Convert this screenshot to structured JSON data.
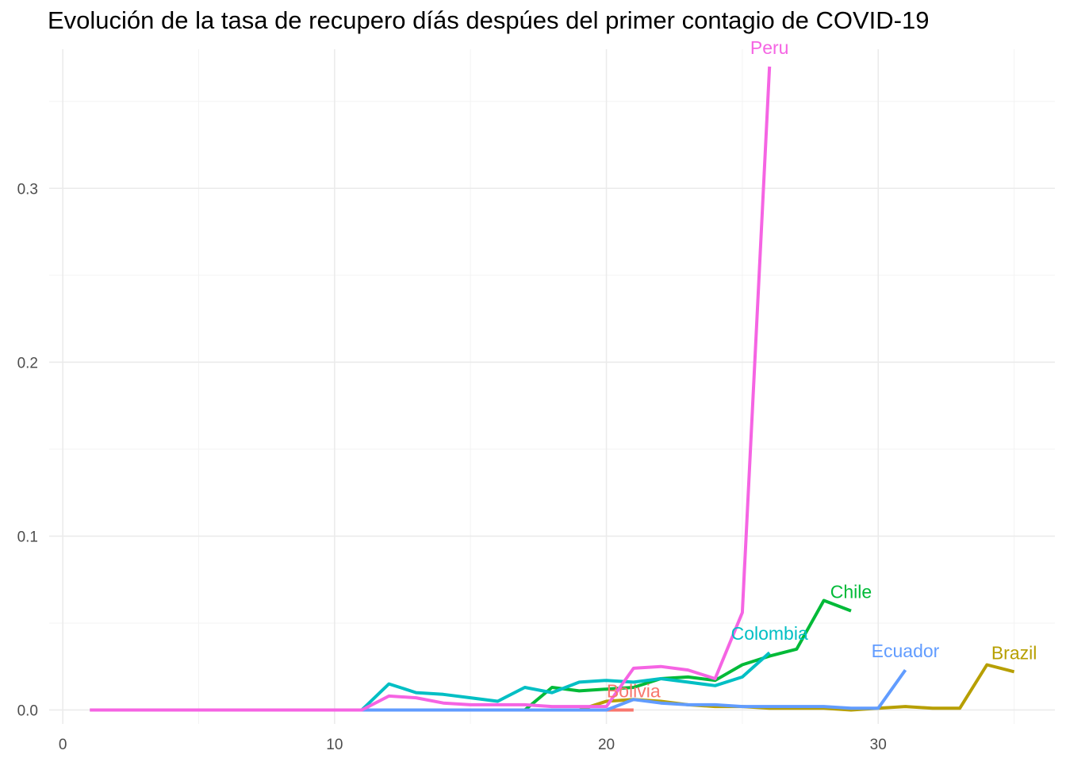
{
  "chart_data": {
    "type": "line",
    "title": "Evolución de la tasa de recupero díás despúes del primer contagio de COVID-19",
    "xlabel": "",
    "ylabel": "",
    "xlim": [
      -0.5,
      36.5
    ],
    "ylim": [
      -0.008,
      0.38
    ],
    "x_ticks": [
      0,
      10,
      20,
      30
    ],
    "y_ticks": [
      0.0,
      0.1,
      0.2,
      0.3
    ],
    "y_tick_labels": [
      "0.0",
      "0.1",
      "0.2",
      "0.3"
    ],
    "grid": true,
    "legend": "none (direct labels at line ends)",
    "series": [
      {
        "name": "Bolivia",
        "color": "#F8766D",
        "x": [
          20,
          21
        ],
        "y": [
          0.0,
          0.0
        ]
      },
      {
        "name": "Brazil",
        "color": "#B79F00",
        "x": [
          1,
          2,
          3,
          4,
          5,
          6,
          7,
          8,
          9,
          10,
          11,
          12,
          13,
          14,
          15,
          16,
          17,
          18,
          19,
          20,
          21,
          22,
          23,
          24,
          25,
          26,
          27,
          28,
          29,
          30,
          31,
          32,
          33,
          34,
          35
        ],
        "y": [
          0,
          0,
          0,
          0,
          0,
          0,
          0,
          0,
          0,
          0,
          0,
          0,
          0,
          0,
          0,
          0,
          0,
          0,
          0,
          0.005,
          0.006,
          0.005,
          0.003,
          0.002,
          0.002,
          0.001,
          0.001,
          0.001,
          0.0,
          0.001,
          0.002,
          0.001,
          0.001,
          0.026,
          0.022
        ]
      },
      {
        "name": "Chile",
        "color": "#00BA38",
        "x": [
          17,
          18,
          19,
          20,
          21,
          22,
          23,
          24,
          25,
          26,
          27,
          28,
          29
        ],
        "y": [
          0.0,
          0.013,
          0.011,
          0.012,
          0.013,
          0.018,
          0.019,
          0.017,
          0.026,
          0.031,
          0.035,
          0.063,
          0.057
        ]
      },
      {
        "name": "Colombia",
        "color": "#00BFC4",
        "x": [
          11,
          12,
          13,
          14,
          15,
          16,
          17,
          18,
          19,
          20,
          21,
          22,
          23,
          24,
          25,
          26
        ],
        "y": [
          0.0,
          0.015,
          0.01,
          0.009,
          0.007,
          0.005,
          0.013,
          0.01,
          0.016,
          0.017,
          0.016,
          0.018,
          0.016,
          0.014,
          0.019,
          0.033
        ]
      },
      {
        "name": "Ecuador",
        "color": "#619CFF",
        "x": [
          1,
          2,
          3,
          4,
          5,
          6,
          7,
          8,
          9,
          10,
          11,
          12,
          13,
          14,
          15,
          16,
          17,
          18,
          19,
          20,
          21,
          22,
          23,
          24,
          25,
          26,
          27,
          28,
          29,
          30,
          31
        ],
        "y": [
          0,
          0,
          0,
          0,
          0,
          0,
          0,
          0,
          0,
          0,
          0,
          0,
          0,
          0,
          0,
          0,
          0,
          0,
          0,
          0,
          0.006,
          0.004,
          0.003,
          0.003,
          0.002,
          0.002,
          0.002,
          0.002,
          0.001,
          0.001,
          0.023
        ]
      },
      {
        "name": "Peru",
        "color": "#F564E3",
        "x": [
          1,
          2,
          3,
          4,
          5,
          6,
          7,
          8,
          9,
          10,
          11,
          12,
          13,
          14,
          15,
          16,
          17,
          18,
          19,
          20,
          21,
          22,
          23,
          24,
          25,
          26
        ],
        "y": [
          0,
          0,
          0,
          0,
          0,
          0,
          0,
          0,
          0,
          0,
          0,
          0.008,
          0.007,
          0.004,
          0.003,
          0.003,
          0.003,
          0.002,
          0.002,
          0.002,
          0.024,
          0.025,
          0.023,
          0.018,
          0.056,
          0.37
        ]
      }
    ]
  }
}
